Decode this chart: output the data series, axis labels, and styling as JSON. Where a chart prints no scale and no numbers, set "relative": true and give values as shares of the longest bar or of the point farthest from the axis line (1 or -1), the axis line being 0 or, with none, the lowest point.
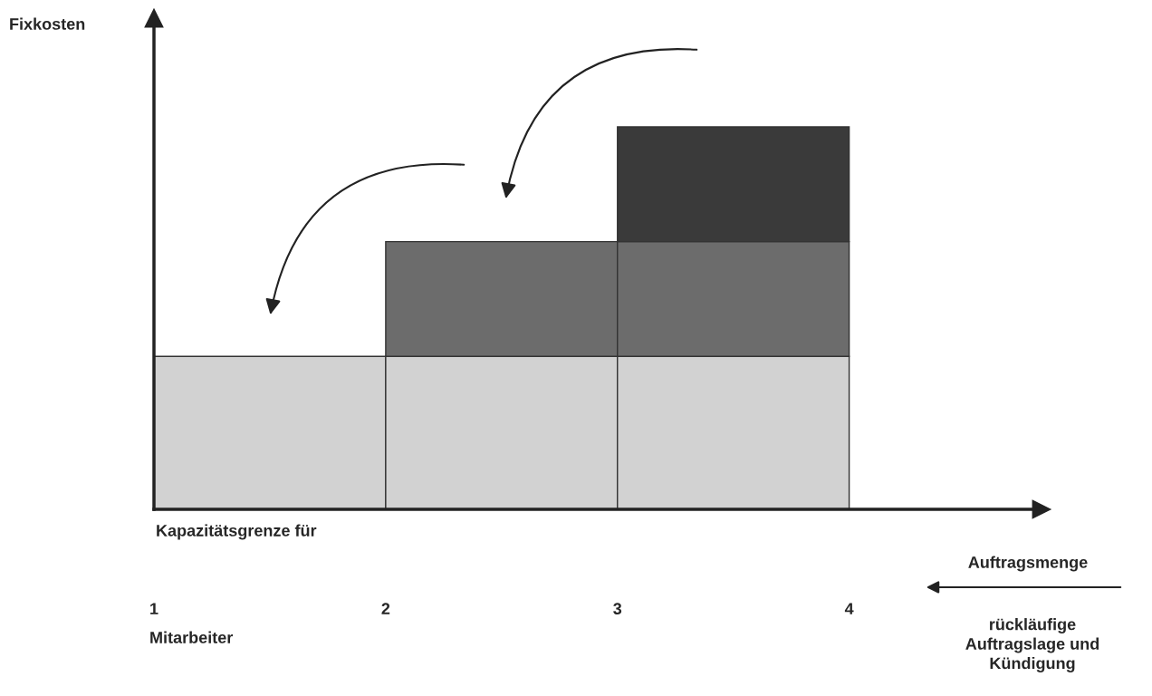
{
  "chart_data": {
    "type": "bar",
    "stacked": true,
    "relative": true,
    "xlabel": "Auftragsmenge",
    "x": [
      1.5,
      2.5,
      3.5
    ],
    "xlim": [
      1,
      4.83
    ],
    "xticks": [
      1,
      2,
      3,
      4
    ],
    "series": [
      {
        "color": "#d2d2d2",
        "values": [
          0.4,
          0.4,
          0.4
        ]
      },
      {
        "color": "#6c6c6c",
        "values": [
          null,
          0.3,
          0.3
        ]
      },
      {
        "color": "#3a3a3a",
        "values": [
          null,
          null,
          0.3
        ]
      }
    ],
    "annotations": [
      "Fixkosten",
      "Kapazitätsgrenze für",
      "Mitarbeiter",
      "rückläufige Auftragslage und Kündigung"
    ],
    "grid": false,
    "legend": false
  }
}
